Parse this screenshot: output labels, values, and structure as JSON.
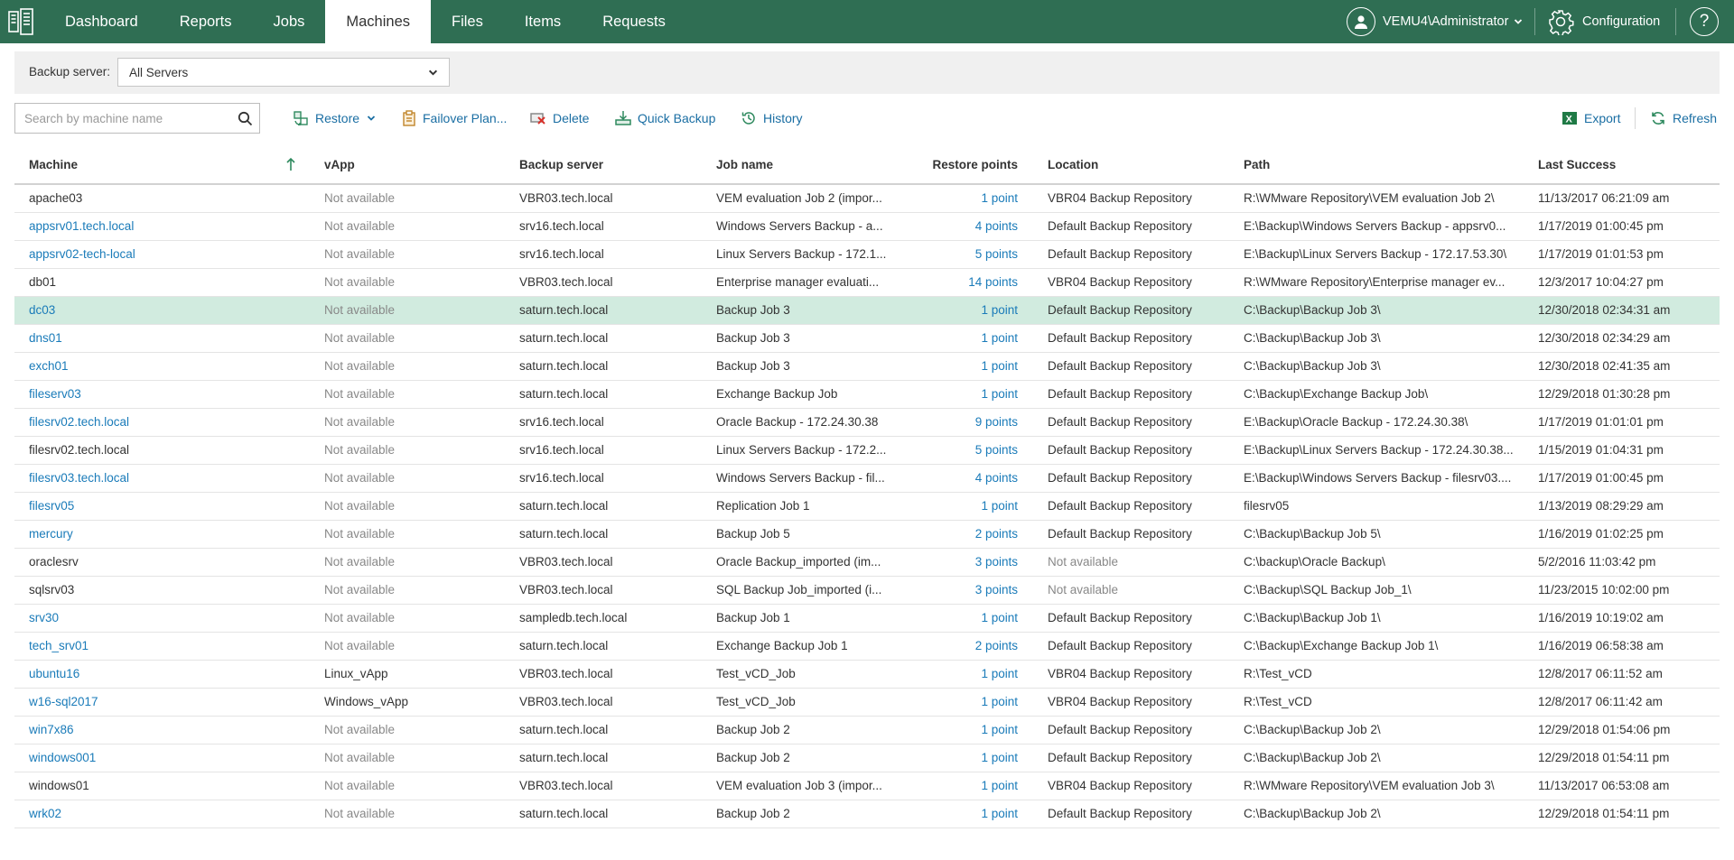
{
  "nav": {
    "tabs": [
      {
        "label": "Dashboard"
      },
      {
        "label": "Reports"
      },
      {
        "label": "Jobs"
      },
      {
        "label": "Machines"
      },
      {
        "label": "Files"
      },
      {
        "label": "Items"
      },
      {
        "label": "Requests"
      }
    ],
    "active_tab": "Machines",
    "user": "VEMU4\\Administrator",
    "configuration": "Configuration",
    "help": "?"
  },
  "filter": {
    "label": "Backup server:",
    "value": "All Servers"
  },
  "search": {
    "placeholder": "Search by machine name"
  },
  "toolbar": {
    "restore": "Restore",
    "failover": "Failover Plan...",
    "delete": "Delete",
    "quick_backup": "Quick Backup",
    "history": "History",
    "export": "Export",
    "refresh": "Refresh"
  },
  "table": {
    "columns": {
      "machine": "Machine",
      "vapp": "vApp",
      "server": "Backup server",
      "job": "Job name",
      "points": "Restore points",
      "location": "Location",
      "path": "Path",
      "last": "Last Success"
    },
    "rows": [
      {
        "machine": "apache03",
        "link": false,
        "vapp": "Not available",
        "server": "VBR03.tech.local",
        "job": "VEM evaluation Job 2 (impor...",
        "points": "1 point",
        "location": "VBR04 Backup Repository",
        "path": "R:\\WMware Repository\\VEM evaluation Job 2\\",
        "last": "11/13/2017 06:21:09 am"
      },
      {
        "machine": "appsrv01.tech.local",
        "link": true,
        "vapp": "Not available",
        "server": "srv16.tech.local",
        "job": "Windows Servers Backup - a...",
        "points": "4 points",
        "location": "Default Backup Repository",
        "path": "E:\\Backup\\Windows Servers Backup - appsrv0...",
        "last": "1/17/2019 01:00:45 pm"
      },
      {
        "machine": "appsrv02-tech-local",
        "link": true,
        "vapp": "Not available",
        "server": "srv16.tech.local",
        "job": "Linux Servers Backup - 172.1...",
        "points": "5 points",
        "location": "Default Backup Repository",
        "path": "E:\\Backup\\Linux Servers Backup - 172.17.53.30\\",
        "last": "1/17/2019 01:01:53 pm"
      },
      {
        "machine": "db01",
        "link": false,
        "vapp": "Not available",
        "server": "VBR03.tech.local",
        "job": "Enterprise manager evaluati...",
        "points": "14 points",
        "location": "VBR04 Backup Repository",
        "path": "R:\\WMware Repository\\Enterprise manager ev...",
        "last": "12/3/2017 10:04:27 pm"
      },
      {
        "machine": "dc03",
        "link": true,
        "selected": true,
        "vapp": "Not available",
        "server": "saturn.tech.local",
        "job": "Backup Job 3",
        "points": "1 point",
        "location": "Default Backup Repository",
        "path": "C:\\Backup\\Backup Job 3\\",
        "last": "12/30/2018 02:34:31 am"
      },
      {
        "machine": "dns01",
        "link": true,
        "vapp": "Not available",
        "server": "saturn.tech.local",
        "job": "Backup Job 3",
        "points": "1 point",
        "location": "Default Backup Repository",
        "path": "C:\\Backup\\Backup Job 3\\",
        "last": "12/30/2018 02:34:29 am"
      },
      {
        "machine": "exch01",
        "link": true,
        "vapp": "Not available",
        "server": "saturn.tech.local",
        "job": "Backup Job 3",
        "points": "1 point",
        "location": "Default Backup Repository",
        "path": "C:\\Backup\\Backup Job 3\\",
        "last": "12/30/2018 02:41:35 am"
      },
      {
        "machine": "fileserv03",
        "link": true,
        "vapp": "Not available",
        "server": "saturn.tech.local",
        "job": "Exchange Backup Job",
        "points": "1 point",
        "location": "Default Backup Repository",
        "path": "C:\\Backup\\Exchange Backup Job\\",
        "last": "12/29/2018 01:30:28 pm"
      },
      {
        "machine": "filesrv02.tech.local",
        "link": true,
        "vapp": "Not available",
        "server": "srv16.tech.local",
        "job": "Oracle Backup - 172.24.30.38",
        "points": "9 points",
        "location": "Default Backup Repository",
        "path": "E:\\Backup\\Oracle Backup - 172.24.30.38\\",
        "last": "1/17/2019 01:01:01 pm"
      },
      {
        "machine": "filesrv02.tech.local",
        "link": false,
        "vapp": "Not available",
        "server": "srv16.tech.local",
        "job": "Linux Servers Backup - 172.2...",
        "points": "5 points",
        "location": "Default Backup Repository",
        "path": "E:\\Backup\\Linux Servers Backup - 172.24.30.38...",
        "last": "1/15/2019 01:04:31 pm"
      },
      {
        "machine": "filesrv03.tech.local",
        "link": true,
        "vapp": "Not available",
        "server": "srv16.tech.local",
        "job": "Windows Servers Backup - fil...",
        "points": "4 points",
        "location": "Default Backup Repository",
        "path": "E:\\Backup\\Windows Servers Backup - filesrv03....",
        "last": "1/17/2019 01:00:45 pm"
      },
      {
        "machine": "filesrv05",
        "link": true,
        "vapp": "Not available",
        "server": "saturn.tech.local",
        "job": "Replication Job 1",
        "points": "1 point",
        "location": "Default Backup Repository",
        "path": "filesrv05",
        "last": "1/13/2019 08:29:29 am"
      },
      {
        "machine": "mercury",
        "link": true,
        "vapp": "Not available",
        "server": "saturn.tech.local",
        "job": "Backup Job 5",
        "points": "2 points",
        "location": "Default Backup Repository",
        "path": "C:\\Backup\\Backup Job 5\\",
        "last": "1/16/2019 01:02:25 pm"
      },
      {
        "machine": "oraclesrv",
        "link": false,
        "vapp": "Not available",
        "server": "VBR03.tech.local",
        "job": "Oracle Backup_imported (im...",
        "points": "3 points",
        "location": "Not available",
        "loc_muted": true,
        "path": "C:\\backup\\Oracle Backup\\",
        "last": "5/2/2016 11:03:42 pm"
      },
      {
        "machine": "sqlsrv03",
        "link": false,
        "vapp": "Not available",
        "server": "VBR03.tech.local",
        "job": "SQL Backup Job_imported (i...",
        "points": "3 points",
        "location": "Not available",
        "loc_muted": true,
        "path": "C:\\Backup\\SQL Backup Job_1\\",
        "last": "11/23/2015 10:02:00 pm"
      },
      {
        "machine": "srv30",
        "link": true,
        "vapp": "Not available",
        "server": "sampledb.tech.local",
        "job": "Backup Job 1",
        "points": "1 point",
        "location": "Default Backup Repository",
        "path": "C:\\Backup\\Backup Job 1\\",
        "last": "1/16/2019 10:19:02 am"
      },
      {
        "machine": "tech_srv01",
        "link": true,
        "vapp": "Not available",
        "server": "saturn.tech.local",
        "job": "Exchange Backup Job 1",
        "points": "2 points",
        "location": "Default Backup Repository",
        "path": "C:\\Backup\\Exchange Backup Job 1\\",
        "last": "1/16/2019 06:58:38 am"
      },
      {
        "machine": "ubuntu16",
        "link": true,
        "vapp": "Linux_vApp",
        "vapp_plain": true,
        "server": "VBR03.tech.local",
        "job": "Test_vCD_Job",
        "points": "1 point",
        "location": "VBR04 Backup Repository",
        "path": "R:\\Test_vCD",
        "last": "12/8/2017 06:11:52 am"
      },
      {
        "machine": "w16-sql2017",
        "link": true,
        "vapp": "Windows_vApp",
        "vapp_plain": true,
        "server": "VBR03.tech.local",
        "job": "Test_vCD_Job",
        "points": "1 point",
        "location": "VBR04 Backup Repository",
        "path": "R:\\Test_vCD",
        "last": "12/8/2017 06:11:42 am"
      },
      {
        "machine": "win7x86",
        "link": true,
        "vapp": "Not available",
        "server": "saturn.tech.local",
        "job": "Backup Job 2",
        "points": "1 point",
        "location": "Default Backup Repository",
        "path": "C:\\Backup\\Backup Job 2\\",
        "last": "12/29/2018 01:54:06 pm"
      },
      {
        "machine": "windows001",
        "link": true,
        "vapp": "Not available",
        "server": "saturn.tech.local",
        "job": "Backup Job 2",
        "points": "1 point",
        "location": "Default Backup Repository",
        "path": "C:\\Backup\\Backup Job 2\\",
        "last": "12/29/2018 01:54:11 pm"
      },
      {
        "machine": "windows01",
        "link": false,
        "vapp": "Not available",
        "server": "VBR03.tech.local",
        "job": "VEM evaluation Job 3 (impor...",
        "points": "1 point",
        "location": "VBR04 Backup Repository",
        "path": "R:\\WMware Repository\\VEM evaluation Job 3\\",
        "last": "11/13/2017 06:53:08 am"
      },
      {
        "machine": "wrk02",
        "link": true,
        "vapp": "Not available",
        "server": "saturn.tech.local",
        "job": "Backup Job 2",
        "points": "1 point",
        "location": "Default Backup Repository",
        "path": "C:\\Backup\\Backup Job 2\\",
        "last": "12/29/2018 01:54:11 pm"
      }
    ]
  },
  "colors": {
    "brand": "#2f6e53",
    "link": "#1a7bb9",
    "selected_row": "#d1ebdf"
  }
}
